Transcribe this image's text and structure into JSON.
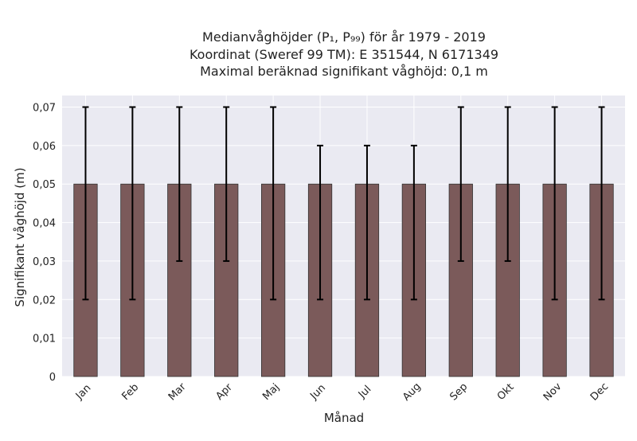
{
  "chart_data": {
    "type": "bar",
    "title_lines": [
      "Medianvåghöjder (P₁, P₉₉) för år 1979 - 2019",
      "Koordinat (Sweref 99 TM): E 351544, N 6171349",
      "Maximal beräknad signifikant våghöjd: 0,1 m"
    ],
    "xlabel": "Månad",
    "ylabel": "Signifikant våghöjd (m)",
    "categories": [
      "Jan",
      "Feb",
      "Mar",
      "Apr",
      "Maj",
      "Jun",
      "Jul",
      "Aug",
      "Sep",
      "Okt",
      "Nov",
      "Dec"
    ],
    "values": [
      0.05,
      0.05,
      0.05,
      0.05,
      0.05,
      0.05,
      0.05,
      0.05,
      0.05,
      0.05,
      0.05,
      0.05
    ],
    "error_low": [
      0.02,
      0.02,
      0.03,
      0.03,
      0.02,
      0.02,
      0.02,
      0.02,
      0.03,
      0.03,
      0.02,
      0.02
    ],
    "error_high": [
      0.07,
      0.07,
      0.07,
      0.07,
      0.07,
      0.06,
      0.06,
      0.06,
      0.07,
      0.07,
      0.07,
      0.07
    ],
    "ylim": [
      0,
      0.073
    ],
    "yticks": [
      0,
      0.01,
      0.02,
      0.03,
      0.04,
      0.05,
      0.06,
      0.07
    ],
    "ytick_labels": [
      "0",
      "0,01",
      "0,02",
      "0,03",
      "0,04",
      "0,05",
      "0,06",
      "0,07"
    ],
    "grid": true,
    "colors": {
      "bar": "#7b5a5a",
      "bar_edge": "#333333",
      "error_bar": "#000000",
      "plot_background": "#eaeaf2",
      "grid": "#ffffff"
    }
  }
}
